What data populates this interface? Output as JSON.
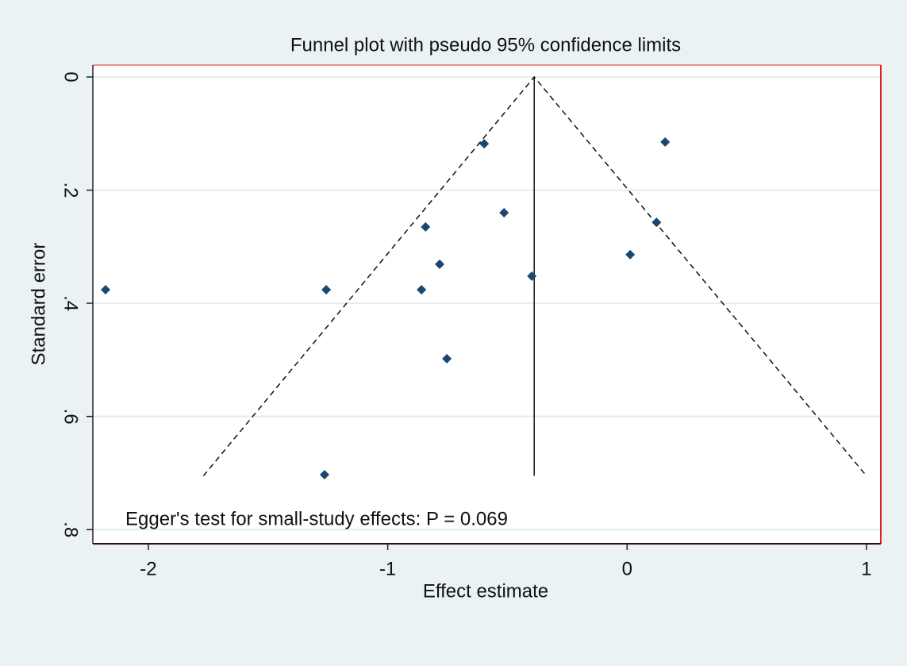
{
  "chart_data": {
    "type": "scatter",
    "title": "Funnel plot with pseudo 95% confidence limits",
    "x_label": "Effect estimate",
    "y_label": "Standard error",
    "annotation": "Egger's test for small-study effects: P = 0.069",
    "series": [
      {
        "name": "Studies",
        "color": "#1a476f",
        "x": [
          -2.179,
          -1.257,
          -0.597,
          0.159,
          -0.514,
          -0.842,
          0.123,
          -0.783,
          0.013,
          -0.859,
          -0.398,
          -0.753,
          -1.264
        ],
        "values": [
          0.376,
          0.376,
          0.118,
          0.115,
          0.24,
          0.265,
          0.257,
          0.331,
          0.314,
          0.376,
          0.352,
          0.498,
          0.703
        ]
      }
    ],
    "pooled_line": {
      "x": [
        -0.388,
        -0.388
      ],
      "y": [
        0,
        0.705
      ]
    },
    "funnel": {
      "x": [
        -1.77,
        -0.388,
        1.0
      ],
      "y": [
        0.705,
        0,
        0.705
      ]
    },
    "xlim": [
      -2.232,
      1.06
    ],
    "ylim": [
      0.825,
      -0.021
    ],
    "xticks": [
      -2,
      -1,
      0,
      1
    ],
    "yticks": [
      0,
      {
        "value": 0.2,
        "label": ".2"
      },
      {
        "value": 0.4,
        "label": ".4"
      },
      {
        "value": 0.6,
        "label": ".6"
      },
      {
        "value": 0.8,
        "label": ".8"
      }
    ],
    "grid": true
  }
}
